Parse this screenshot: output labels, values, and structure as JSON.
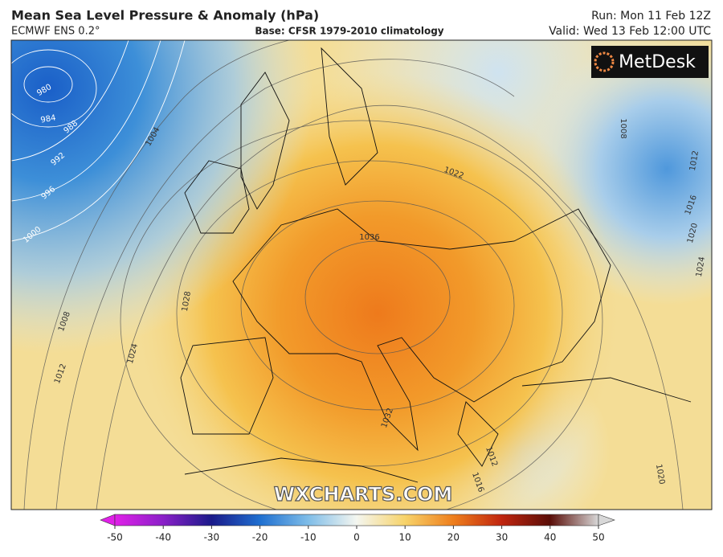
{
  "header": {
    "title": "Mean Sea Level Pressure & Anomaly (hPa)",
    "model": "ECMWF ENS 0.2°",
    "base": "Base: CFSR 1979-2010 climatology",
    "run": "Run: Mon 11 Feb 12Z",
    "valid": "Valid: Wed 13 Feb 12:00 UTC"
  },
  "logo": "MetDesk",
  "watermark": "WXCHARTS.COM",
  "isobar_labels": [
    980,
    984,
    988,
    992,
    996,
    1000,
    1004,
    1008,
    1012,
    1024,
    1028,
    1036,
    1032,
    1022,
    1012,
    1016,
    1008,
    1012,
    1016,
    1020,
    1024,
    1020
  ],
  "colorbar": {
    "range": [
      -50,
      50
    ],
    "ticks": [
      -50,
      -40,
      -30,
      -20,
      -10,
      0,
      10,
      20,
      30,
      40,
      50
    ]
  }
}
